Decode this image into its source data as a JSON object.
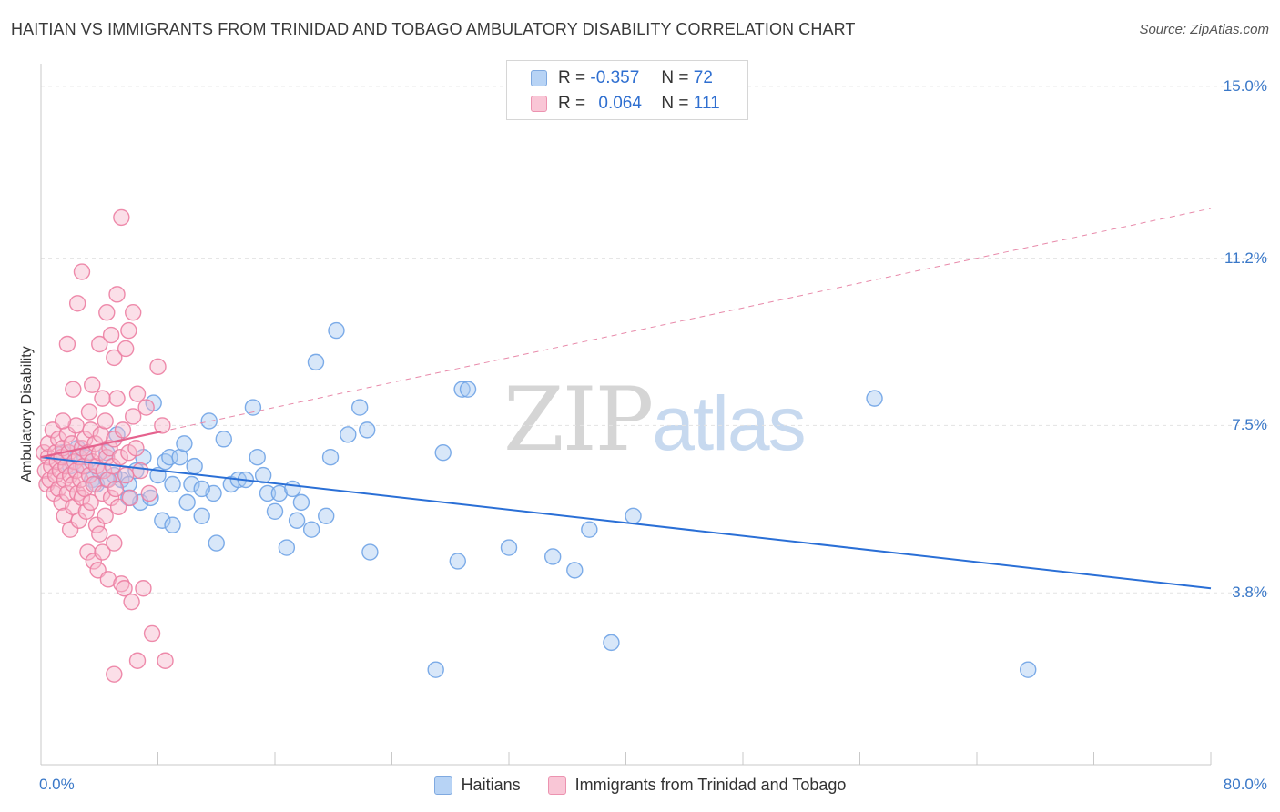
{
  "header": {
    "title": "HAITIAN VS IMMIGRANTS FROM TRINIDAD AND TOBAGO AMBULATORY DISABILITY CORRELATION CHART",
    "source": "Source: ZipAtlas.com"
  },
  "watermark": {
    "zip": "ZIP",
    "atlas": "atlas"
  },
  "legend": {
    "r_label": "R =",
    "n_label": "N =",
    "haitians": {
      "r": "-0.357",
      "n": "72"
    },
    "trinidad": {
      "r": "0.064",
      "n": "111"
    }
  },
  "chart_data": {
    "type": "scatter",
    "title": "HAITIAN VS IMMIGRANTS FROM TRINIDAD AND TOBAGO AMBULATORY DISABILITY CORRELATION CHART",
    "ylabel": "Ambulatory Disability",
    "xlim": [
      0,
      80
    ],
    "ylim": [
      0,
      15.5
    ],
    "x_tick_labels": [
      "0.0%",
      "80.0%"
    ],
    "y_ticks": [
      3.8,
      7.5,
      11.2,
      15.0
    ],
    "y_tick_labels": [
      "3.8%",
      "7.5%",
      "11.2%",
      "15.0%"
    ],
    "series": [
      {
        "name": "Haitians",
        "color": "#6fa3e6",
        "fill": "#a9c9f2",
        "r": "-0.357",
        "n": "72",
        "trend": {
          "x": [
            0,
            80
          ],
          "y": [
            6.8,
            3.9
          ],
          "style": "solid"
        },
        "points": [
          [
            1.5,
            6.9
          ],
          [
            2.5,
            7.0
          ],
          [
            3.0,
            6.8
          ],
          [
            3.5,
            6.3
          ],
          [
            3.8,
            6.2
          ],
          [
            4.5,
            6.3
          ],
          [
            4.5,
            6.9
          ],
          [
            5.2,
            7.3
          ],
          [
            5.5,
            6.3
          ],
          [
            6.0,
            6.2
          ],
          [
            6.5,
            6.5
          ],
          [
            6.8,
            5.8
          ],
          [
            7.0,
            6.8
          ],
          [
            7.5,
            5.9
          ],
          [
            7.7,
            8.0
          ],
          [
            8.0,
            6.4
          ],
          [
            8.3,
            5.4
          ],
          [
            8.5,
            6.7
          ],
          [
            8.8,
            6.8
          ],
          [
            9.0,
            5.3
          ],
          [
            9.5,
            6.8
          ],
          [
            9.8,
            7.1
          ],
          [
            10.0,
            5.8
          ],
          [
            10.3,
            6.2
          ],
          [
            10.5,
            6.6
          ],
          [
            11.0,
            5.5
          ],
          [
            11.5,
            7.6
          ],
          [
            11.8,
            6.0
          ],
          [
            12.0,
            4.9
          ],
          [
            12.5,
            7.2
          ],
          [
            13.0,
            6.2
          ],
          [
            13.5,
            6.3
          ],
          [
            14.0,
            6.3
          ],
          [
            14.5,
            7.9
          ],
          [
            14.8,
            6.8
          ],
          [
            15.2,
            6.4
          ],
          [
            15.5,
            6.0
          ],
          [
            16.0,
            5.6
          ],
          [
            16.3,
            6.0
          ],
          [
            16.8,
            4.8
          ],
          [
            17.2,
            6.1
          ],
          [
            17.5,
            5.4
          ],
          [
            17.8,
            5.8
          ],
          [
            18.5,
            5.2
          ],
          [
            18.8,
            8.9
          ],
          [
            19.5,
            5.5
          ],
          [
            19.8,
            6.8
          ],
          [
            20.2,
            9.6
          ],
          [
            21.0,
            7.3
          ],
          [
            21.8,
            7.9
          ],
          [
            22.3,
            7.4
          ],
          [
            22.5,
            4.7
          ],
          [
            27.0,
            2.1
          ],
          [
            27.5,
            6.9
          ],
          [
            28.5,
            4.5
          ],
          [
            28.8,
            8.3
          ],
          [
            29.2,
            8.3
          ],
          [
            32.0,
            4.8
          ],
          [
            35.0,
            4.6
          ],
          [
            36.5,
            4.3
          ],
          [
            37.5,
            5.2
          ],
          [
            40.5,
            5.5
          ],
          [
            39.0,
            2.7
          ],
          [
            57.0,
            8.1
          ],
          [
            67.5,
            2.1
          ],
          [
            4.0,
            6.5
          ],
          [
            6.0,
            5.9
          ],
          [
            11.0,
            6.1
          ],
          [
            3.0,
            6.6
          ],
          [
            5.0,
            6.4
          ],
          [
            9.0,
            6.2
          ],
          [
            2.0,
            6.6
          ]
        ]
      },
      {
        "name": "Immigrants from Trinidad and Tobago",
        "color": "#ec7ea2",
        "fill": "#f6b9cc",
        "r": "0.064",
        "n": "111",
        "trend": {
          "x": [
            0,
            80
          ],
          "y": [
            6.8,
            12.3
          ],
          "style": "dashed",
          "solid_until": 8.2
        },
        "points": [
          [
            0.2,
            6.9
          ],
          [
            0.3,
            6.5
          ],
          [
            0.4,
            6.2
          ],
          [
            0.5,
            6.8
          ],
          [
            0.5,
            7.1
          ],
          [
            0.6,
            6.3
          ],
          [
            0.7,
            6.6
          ],
          [
            0.8,
            7.4
          ],
          [
            0.9,
            6.0
          ],
          [
            1.0,
            6.9
          ],
          [
            1.0,
            6.4
          ],
          [
            1.1,
            6.7
          ],
          [
            1.2,
            6.1
          ],
          [
            1.2,
            7.2
          ],
          [
            1.3,
            6.5
          ],
          [
            1.4,
            5.8
          ],
          [
            1.4,
            6.8
          ],
          [
            1.5,
            7.0
          ],
          [
            1.6,
            6.3
          ],
          [
            1.6,
            5.5
          ],
          [
            1.7,
            6.6
          ],
          [
            1.8,
            7.3
          ],
          [
            1.8,
            6.0
          ],
          [
            1.9,
            6.9
          ],
          [
            2.0,
            6.4
          ],
          [
            2.0,
            5.2
          ],
          [
            2.1,
            7.1
          ],
          [
            2.2,
            6.2
          ],
          [
            2.2,
            5.7
          ],
          [
            2.3,
            6.7
          ],
          [
            2.4,
            6.5
          ],
          [
            2.4,
            7.5
          ],
          [
            2.5,
            6.0
          ],
          [
            2.6,
            6.8
          ],
          [
            2.6,
            5.4
          ],
          [
            2.7,
            6.3
          ],
          [
            2.8,
            7.0
          ],
          [
            2.8,
            5.9
          ],
          [
            2.9,
            6.6
          ],
          [
            3.0,
            7.2
          ],
          [
            3.0,
            6.1
          ],
          [
            3.1,
            5.6
          ],
          [
            3.2,
            6.9
          ],
          [
            3.2,
            4.7
          ],
          [
            3.3,
            6.4
          ],
          [
            3.4,
            7.4
          ],
          [
            3.4,
            5.8
          ],
          [
            3.5,
            6.7
          ],
          [
            3.6,
            6.2
          ],
          [
            3.6,
            4.5
          ],
          [
            3.7,
            7.1
          ],
          [
            3.8,
            5.3
          ],
          [
            3.8,
            6.6
          ],
          [
            3.9,
            4.3
          ],
          [
            4.0,
            6.9
          ],
          [
            4.0,
            5.1
          ],
          [
            4.1,
            7.3
          ],
          [
            4.2,
            6.0
          ],
          [
            4.2,
            4.7
          ],
          [
            4.3,
            6.5
          ],
          [
            4.4,
            7.6
          ],
          [
            4.4,
            5.5
          ],
          [
            4.5,
            6.8
          ],
          [
            4.6,
            4.1
          ],
          [
            4.6,
            6.3
          ],
          [
            4.7,
            7.0
          ],
          [
            4.8,
            5.9
          ],
          [
            4.9,
            6.6
          ],
          [
            5.0,
            7.2
          ],
          [
            5.0,
            4.9
          ],
          [
            5.1,
            6.1
          ],
          [
            5.2,
            8.1
          ],
          [
            5.3,
            5.7
          ],
          [
            5.4,
            6.8
          ],
          [
            5.5,
            4.0
          ],
          [
            5.6,
            7.4
          ],
          [
            5.7,
            3.9
          ],
          [
            5.8,
            6.4
          ],
          [
            6.0,
            6.9
          ],
          [
            6.1,
            5.9
          ],
          [
            6.2,
            3.6
          ],
          [
            6.3,
            7.7
          ],
          [
            6.5,
            7.0
          ],
          [
            6.6,
            8.2
          ],
          [
            6.8,
            6.5
          ],
          [
            7.0,
            3.9
          ],
          [
            7.2,
            7.9
          ],
          [
            7.4,
            6.0
          ],
          [
            7.6,
            2.9
          ],
          [
            8.0,
            8.8
          ],
          [
            8.3,
            7.5
          ],
          [
            8.5,
            2.3
          ],
          [
            1.8,
            9.3
          ],
          [
            2.5,
            10.2
          ],
          [
            2.8,
            10.9
          ],
          [
            3.5,
            8.4
          ],
          [
            4.0,
            9.3
          ],
          [
            4.2,
            8.1
          ],
          [
            4.5,
            10.0
          ],
          [
            4.8,
            9.5
          ],
          [
            5.0,
            9.0
          ],
          [
            5.2,
            10.4
          ],
          [
            5.5,
            12.1
          ],
          [
            5.8,
            9.2
          ],
          [
            6.0,
            9.6
          ],
          [
            6.3,
            10.0
          ],
          [
            2.2,
            8.3
          ],
          [
            1.5,
            7.6
          ],
          [
            6.6,
            2.3
          ],
          [
            5.0,
            2.0
          ],
          [
            3.3,
            7.8
          ]
        ]
      }
    ]
  }
}
